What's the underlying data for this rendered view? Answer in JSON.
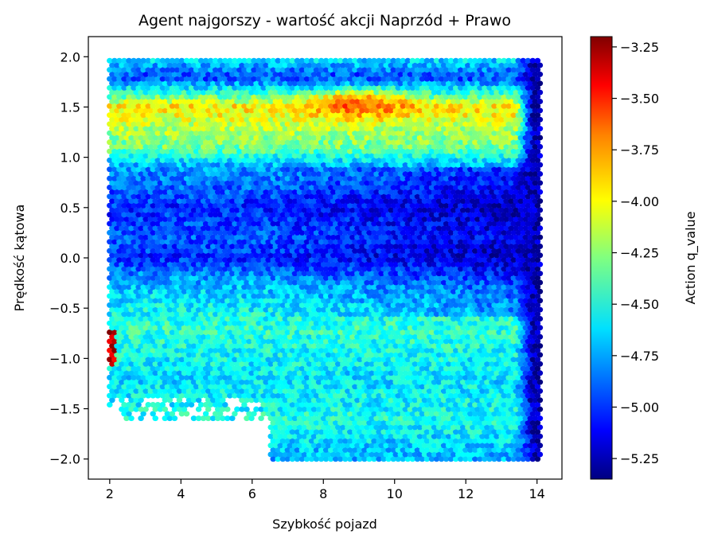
{
  "chart_data": {
    "type": "heatmap",
    "subtype": "hexbin",
    "title": "Agent najgorszy - wartość akcji Naprzód + Prawo",
    "xlabel": "Szybkość pojazd",
    "ylabel": "Prędkość kątowa",
    "colorbar_label": "Action q_value",
    "colormap": "jet",
    "xlim": [
      1.4,
      14.7
    ],
    "ylim": [
      -2.2,
      2.2
    ],
    "x_ticks": [
      2,
      4,
      6,
      8,
      10,
      12,
      14
    ],
    "x_tick_labels": [
      "2",
      "4",
      "6",
      "8",
      "10",
      "12",
      "14"
    ],
    "y_ticks": [
      2.0,
      1.5,
      1.0,
      0.5,
      0.0,
      -0.5,
      -1.0,
      -1.5,
      -2.0
    ],
    "y_tick_labels": [
      "2.0",
      "1.5",
      "1.0",
      "0.5",
      "0.0",
      "−0.5",
      "−1.0",
      "−1.5",
      "−2.0"
    ],
    "color_range": [
      -5.35,
      -3.2
    ],
    "colorbar_ticks": [
      -3.25,
      -3.5,
      -3.75,
      -4.0,
      -4.25,
      -4.5,
      -4.75,
      -5.0,
      -5.25
    ],
    "colorbar_tick_labels": [
      "−3.25",
      "−3.50",
      "−3.75",
      "−4.00",
      "−4.25",
      "−4.50",
      "−4.75",
      "−5.00",
      "−5.25"
    ],
    "data_extent": {
      "x": [
        2.0,
        14.1
      ],
      "y": [
        -2.0,
        2.0
      ]
    },
    "profile_by_angular_speed": [
      {
        "y": 2.0,
        "q_value": -4.55
      },
      {
        "y": 1.8,
        "q_value": -4.95
      },
      {
        "y": 1.6,
        "q_value": -4.3
      },
      {
        "y": 1.5,
        "q_value": -3.95
      },
      {
        "y": 1.3,
        "q_value": -4.15
      },
      {
        "y": 1.1,
        "q_value": -4.3
      },
      {
        "y": 0.9,
        "q_value": -4.75
      },
      {
        "y": 0.5,
        "q_value": -5.0
      },
      {
        "y": 0.2,
        "q_value": -4.9
      },
      {
        "y": 0.0,
        "q_value": -5.0
      },
      {
        "y": -0.3,
        "q_value": -4.65
      },
      {
        "y": -0.7,
        "q_value": -4.45
      },
      {
        "y": -1.2,
        "q_value": -4.6
      },
      {
        "y": -1.6,
        "q_value": -4.5
      },
      {
        "y": -2.0,
        "q_value": -4.7
      }
    ],
    "hotspot": {
      "x": [
        7.5,
        10.5
      ],
      "y": [
        1.4,
        1.65
      ],
      "q_value": -3.65
    },
    "edge_effects": "right edge (x≈13.5–14.1) dark blue around −5.25 with a few red cells; left edge at x≈2 near y≈−1.0 dark red",
    "missing_region": "lower-left corner (x < 6.5, y < −1.6) has no data"
  }
}
